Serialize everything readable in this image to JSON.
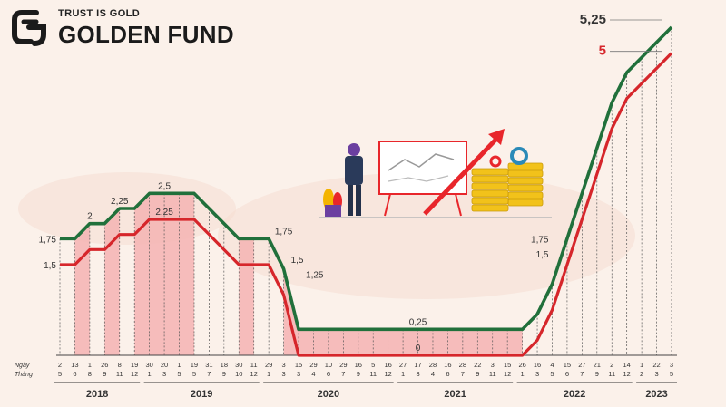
{
  "brand": {
    "tagline": "TRUST IS GOLD",
    "name": "GOLDEN FUND",
    "logo_icon": "golden-fund-logo-icon"
  },
  "illustration": {
    "icon": "business-growth-illustration-icon",
    "accent_color": "#e8262b",
    "gold_color": "#f2c21a"
  },
  "colors": {
    "upper_line": "#21703b",
    "lower_line": "#d6262b",
    "band_fill": "#f4b3b3",
    "background": "#fbf1ea"
  },
  "chart_data": {
    "type": "line",
    "row_labels": [
      "Ngày",
      "Tháng"
    ],
    "x": [
      {
        "day": "2",
        "month": "5"
      },
      {
        "day": "13",
        "month": "6"
      },
      {
        "day": "1",
        "month": "8"
      },
      {
        "day": "26",
        "month": "9"
      },
      {
        "day": "8",
        "month": "11"
      },
      {
        "day": "19",
        "month": "12"
      },
      {
        "day": "30",
        "month": "1"
      },
      {
        "day": "20",
        "month": "3"
      },
      {
        "day": "1",
        "month": "5"
      },
      {
        "day": "19",
        "month": "5"
      },
      {
        "day": "31",
        "month": "7"
      },
      {
        "day": "18",
        "month": "9"
      },
      {
        "day": "30",
        "month": "10"
      },
      {
        "day": "11",
        "month": "12"
      },
      {
        "day": "29",
        "month": "1"
      },
      {
        "day": "3",
        "month": "3"
      },
      {
        "day": "15",
        "month": "3"
      },
      {
        "day": "29",
        "month": "4"
      },
      {
        "day": "10",
        "month": "6"
      },
      {
        "day": "29",
        "month": "7"
      },
      {
        "day": "16",
        "month": "9"
      },
      {
        "day": "5",
        "month": "11"
      },
      {
        "day": "16",
        "month": "12"
      },
      {
        "day": "27",
        "month": "1"
      },
      {
        "day": "17",
        "month": "3"
      },
      {
        "day": "28",
        "month": "4"
      },
      {
        "day": "16",
        "month": "6"
      },
      {
        "day": "28",
        "month": "7"
      },
      {
        "day": "22",
        "month": "9"
      },
      {
        "day": "3",
        "month": "11"
      },
      {
        "day": "15",
        "month": "12"
      },
      {
        "day": "26",
        "month": "1"
      },
      {
        "day": "16",
        "month": "3"
      },
      {
        "day": "4",
        "month": "5"
      },
      {
        "day": "15",
        "month": "6"
      },
      {
        "day": "27",
        "month": "7"
      },
      {
        "day": "21",
        "month": "9"
      },
      {
        "day": "2",
        "month": "11"
      },
      {
        "day": "14",
        "month": "12"
      },
      {
        "day": "1",
        "month": "2"
      },
      {
        "day": "22",
        "month": "3"
      },
      {
        "day": "3",
        "month": "5"
      }
    ],
    "year_groups": [
      {
        "year": "2018",
        "start": 0,
        "end": 5
      },
      {
        "year": "2019",
        "start": 6,
        "end": 13
      },
      {
        "year": "2020",
        "start": 14,
        "end": 22
      },
      {
        "year": "2021",
        "start": 23,
        "end": 30
      },
      {
        "year": "2022",
        "start": 31,
        "end": 38
      },
      {
        "year": "2023",
        "start": 39,
        "end": 41
      }
    ],
    "series": [
      {
        "values": [
          1.75,
          1.75,
          2,
          2,
          2.25,
          2.25,
          2.5,
          2.5,
          2.5,
          2.5,
          2.25,
          2,
          1.75,
          1.75,
          1.75,
          1.25,
          0.25,
          0.25,
          0.25,
          0.25,
          0.25,
          0.25,
          0.25,
          0.25,
          0.25,
          0.25,
          0.25,
          0.25,
          0.25,
          0.25,
          0.25,
          0.25,
          0.5,
          1,
          1.75,
          2.5,
          3.25,
          4,
          4.5,
          4.75,
          5,
          5.25
        ]
      },
      {
        "values": [
          1.5,
          1.5,
          1.75,
          1.75,
          2,
          2,
          2.25,
          2.25,
          2.25,
          2.25,
          2,
          1.75,
          1.5,
          1.5,
          1.5,
          1,
          0,
          0,
          0,
          0,
          0,
          0,
          0,
          0,
          0,
          0,
          0,
          0,
          0,
          0,
          0,
          0,
          0.25,
          0.75,
          1.5,
          2.25,
          3,
          3.75,
          4.25,
          4.5,
          4.75,
          5
        ]
      }
    ],
    "value_labels": [
      {
        "text": "1,75",
        "index": 0,
        "value": 1.75,
        "side": "left"
      },
      {
        "text": "1,5",
        "index": 0,
        "value": 1.5,
        "side": "left"
      },
      {
        "text": "2",
        "index": 2,
        "value": 2,
        "side": "above"
      },
      {
        "text": "2,25",
        "index": 4,
        "value": 2.25,
        "side": "above"
      },
      {
        "text": "2,5",
        "index": 7,
        "value": 2.5,
        "side": "above"
      },
      {
        "text": "2,25",
        "index": 7,
        "value": 2.25,
        "side": "above"
      },
      {
        "text": "1,75",
        "index": 15,
        "value": 1.75,
        "side": "above"
      },
      {
        "text": "1,5",
        "index": 15,
        "value": 1.5,
        "side": "right"
      },
      {
        "text": "1,25",
        "index": 16,
        "value": 1.25,
        "side": "right"
      },
      {
        "text": "0,25",
        "index": 24,
        "value": 0.25,
        "side": "above"
      },
      {
        "text": "0",
        "index": 24,
        "value": 0,
        "side": "above"
      },
      {
        "text": "1,75",
        "index": 33,
        "value": 1.75,
        "side": "left"
      },
      {
        "text": "1,5",
        "index": 33,
        "value": 1.5,
        "side": "left"
      }
    ],
    "end_labels": [
      {
        "text": "5,25",
        "value": 5.25
      },
      {
        "text": "5",
        "value": 5
      }
    ],
    "shaded_intervals": [
      [
        1,
        2
      ],
      [
        3,
        4
      ],
      [
        5,
        9
      ],
      [
        12,
        13
      ],
      [
        15,
        31
      ]
    ],
    "ylim": [
      0,
      5.25
    ],
    "grid": false
  }
}
